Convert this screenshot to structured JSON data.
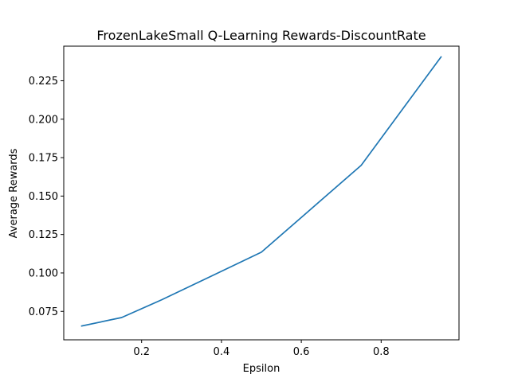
{
  "chart_data": {
    "type": "line",
    "title": "FrozenLakeSmall Q-Learning Rewards-DiscountRate",
    "xlabel": "Epsilon",
    "ylabel": "Average Rewards",
    "xlim": [
      0.005,
      0.995
    ],
    "ylim": [
      0.0565,
      0.2475
    ],
    "xticks": [
      0.2,
      0.4,
      0.6,
      0.8
    ],
    "xtick_labels": [
      "0.2",
      "0.4",
      "0.6",
      "0.8"
    ],
    "yticks": [
      0.075,
      0.1,
      0.125,
      0.15,
      0.175,
      0.2,
      0.225
    ],
    "ytick_labels": [
      "0.075",
      "0.100",
      "0.125",
      "0.150",
      "0.175",
      "0.200",
      "0.225"
    ],
    "grid": false,
    "series": [
      {
        "color": "#1f77b4",
        "x": [
          0.05,
          0.15,
          0.25,
          0.5,
          0.75,
          0.95
        ],
        "y": [
          0.0655,
          0.071,
          0.0825,
          0.1135,
          0.17,
          0.2405
        ]
      }
    ]
  }
}
